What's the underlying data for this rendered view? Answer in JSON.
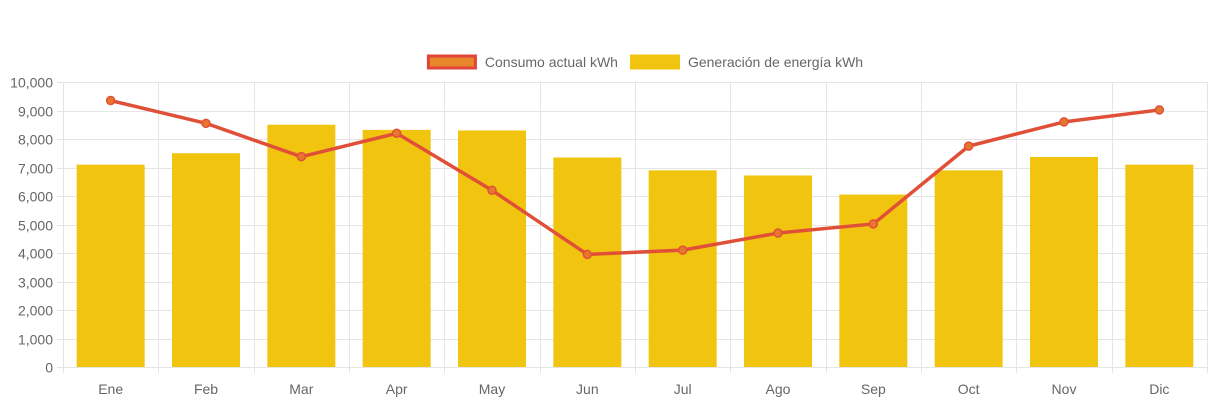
{
  "chart_data": {
    "type": "bar",
    "title": "",
    "xlabel": "",
    "ylabel": "",
    "categories": [
      "Ene",
      "Feb",
      "Mar",
      "Apr",
      "May",
      "Jun",
      "Jul",
      "Ago",
      "Sep",
      "Oct",
      "Nov",
      "Dic"
    ],
    "ylim": [
      0,
      10000
    ],
    "yticks": [
      0,
      1000,
      2000,
      3000,
      4000,
      5000,
      6000,
      7000,
      8000,
      9000,
      10000
    ],
    "ytick_labels": [
      "0",
      "1,000",
      "2,000",
      "3,000",
      "4,000",
      "5,000",
      "6,000",
      "7,000",
      "8,000",
      "9,000",
      "10,000"
    ],
    "grid": true,
    "legend_position": "top-center",
    "series": [
      {
        "name": "Consumo actual kWh",
        "kind": "line",
        "color": "#e05038",
        "marker_color": "#e8772e",
        "values": [
          9350,
          8550,
          7380,
          8200,
          6200,
          3950,
          4100,
          4700,
          5020,
          7750,
          8600,
          9020
        ]
      },
      {
        "name": "Generación de energía kWh",
        "kind": "bar",
        "color": "#f1c40f",
        "values": [
          7100,
          7500,
          8500,
          8320,
          8300,
          7350,
          6900,
          6720,
          6050,
          6900,
          7370,
          7100
        ]
      }
    ]
  },
  "colors": {
    "grid": "#e5e5e5",
    "axis_text": "#666666",
    "legend_line_fill": "#e8862a",
    "legend_line_border": "#e0443a",
    "bar": "#f1c40f",
    "line": "#e05038"
  }
}
